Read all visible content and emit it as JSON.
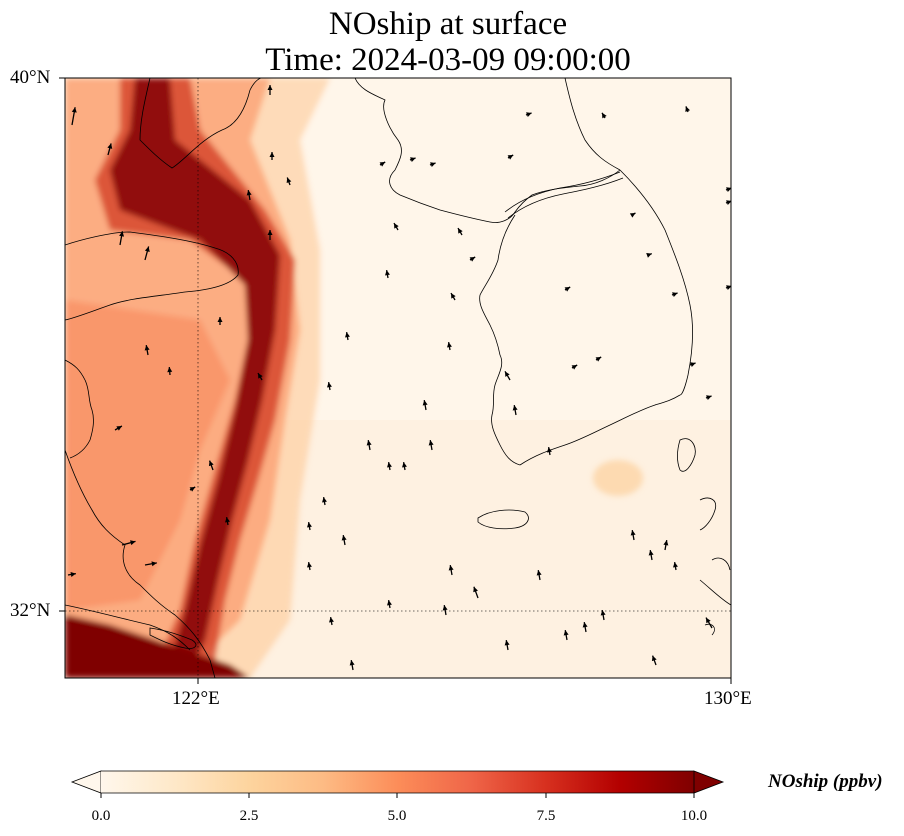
{
  "figure": {
    "title_line1": "NOship at surface",
    "title_line2": "Time: 2024-03-09 09:00:00"
  },
  "map": {
    "lat_ticks": [
      "40°N",
      "32°N"
    ],
    "lon_ticks": [
      "122°E",
      "130°E"
    ],
    "lon_range": [
      120,
      130
    ],
    "lat_range": [
      31,
      40
    ],
    "gridlines": true
  },
  "colorbar": {
    "label": "NOship (ppbv)",
    "ticks": [
      "0.0",
      "2.5",
      "5.0",
      "7.5",
      "10.0"
    ],
    "range": [
      0,
      10
    ],
    "extend": "both",
    "colormap": "OrRd",
    "colors": [
      "#fff7ec",
      "#fee8c8",
      "#fdd49e",
      "#fdbb84",
      "#fc8d59",
      "#ef6548",
      "#d7301f",
      "#b30000",
      "#7f0000"
    ]
  }
}
